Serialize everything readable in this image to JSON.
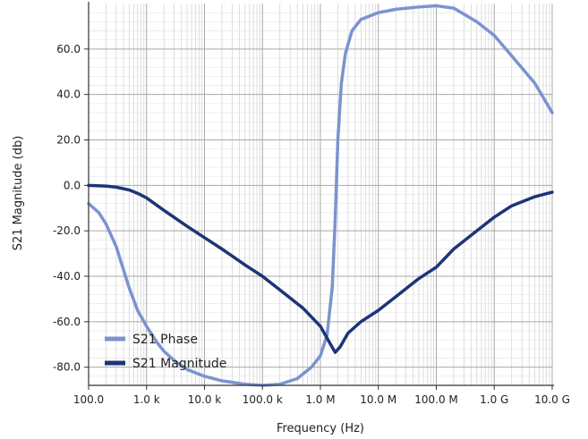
{
  "chart_data": {
    "type": "line",
    "xscale": "log",
    "xlabel": "Frequency (Hz)",
    "ylabel": "S21 Magnitude (db)",
    "xlim": [
      100,
      10000000000
    ],
    "ylim": [
      -88,
      80
    ],
    "xticks": [
      {
        "value": 100,
        "label": "100.0"
      },
      {
        "value": 1000,
        "label": "1.0 k"
      },
      {
        "value": 10000,
        "label": "10.0 k"
      },
      {
        "value": 100000,
        "label": "100.0 k"
      },
      {
        "value": 1000000,
        "label": "1.0 M"
      },
      {
        "value": 10000000,
        "label": "10.0 M"
      },
      {
        "value": 100000000,
        "label": "100.0 M"
      },
      {
        "value": 1000000000,
        "label": "1.0 G"
      },
      {
        "value": 10000000000,
        "label": "10.0 G"
      }
    ],
    "yticks": [
      {
        "value": 60,
        "label": "60.0"
      },
      {
        "value": 40,
        "label": "40.0"
      },
      {
        "value": 20,
        "label": "20.0"
      },
      {
        "value": 0,
        "label": "0.0"
      },
      {
        "value": -20,
        "label": "-20.0"
      },
      {
        "value": -40,
        "label": "-40.0"
      },
      {
        "value": -60,
        "label": "-60.0"
      },
      {
        "value": -80,
        "label": "-80.0"
      }
    ],
    "grid": true,
    "legend_position": "bottom-left",
    "series": [
      {
        "name": "S21 Phase",
        "color": "#7b93cf",
        "points": [
          [
            100,
            -8
          ],
          [
            150,
            -12
          ],
          [
            200,
            -17
          ],
          [
            300,
            -27
          ],
          [
            500,
            -45
          ],
          [
            700,
            -55
          ],
          [
            1000,
            -62
          ],
          [
            1500,
            -69
          ],
          [
            2000,
            -73
          ],
          [
            3000,
            -77
          ],
          [
            5000,
            -81
          ],
          [
            10000,
            -84
          ],
          [
            20000,
            -86
          ],
          [
            50000,
            -87.5
          ],
          [
            100000,
            -88
          ],
          [
            200000,
            -87.5
          ],
          [
            400000,
            -85
          ],
          [
            700000,
            -80
          ],
          [
            1000000,
            -75
          ],
          [
            1300000,
            -66
          ],
          [
            1600000,
            -45
          ],
          [
            1800000,
            -15
          ],
          [
            2000000,
            20
          ],
          [
            2300000,
            45
          ],
          [
            2700000,
            58
          ],
          [
            3500000,
            68
          ],
          [
            5000000,
            73
          ],
          [
            10000000,
            76
          ],
          [
            20000000,
            77.5
          ],
          [
            50000000,
            78.5
          ],
          [
            100000000,
            79
          ],
          [
            200000000,
            78
          ],
          [
            500000000,
            72
          ],
          [
            1000000000,
            66
          ],
          [
            2000000000,
            57
          ],
          [
            5000000000,
            45
          ],
          [
            10000000000,
            32
          ]
        ]
      },
      {
        "name": "S21 Magnitude",
        "color": "#1e3478",
        "points": [
          [
            100,
            0
          ],
          [
            200,
            -0.3
          ],
          [
            300,
            -0.8
          ],
          [
            500,
            -2
          ],
          [
            700,
            -3.5
          ],
          [
            1000,
            -5.5
          ],
          [
            2000,
            -11
          ],
          [
            5000,
            -18
          ],
          [
            10000,
            -23
          ],
          [
            20000,
            -28
          ],
          [
            50000,
            -35
          ],
          [
            100000,
            -40
          ],
          [
            200000,
            -46
          ],
          [
            500000,
            -54
          ],
          [
            1000000,
            -62
          ],
          [
            1500000,
            -70
          ],
          [
            1800000,
            -73.5
          ],
          [
            2200000,
            -71
          ],
          [
            3000000,
            -65
          ],
          [
            5000000,
            -60
          ],
          [
            10000000,
            -55
          ],
          [
            20000000,
            -49
          ],
          [
            50000000,
            -41
          ],
          [
            100000000,
            -36
          ],
          [
            200000000,
            -28
          ],
          [
            500000000,
            -20
          ],
          [
            1000000000,
            -14
          ],
          [
            2000000000,
            -9
          ],
          [
            5000000000,
            -5
          ],
          [
            10000000000,
            -3
          ]
        ]
      }
    ]
  }
}
